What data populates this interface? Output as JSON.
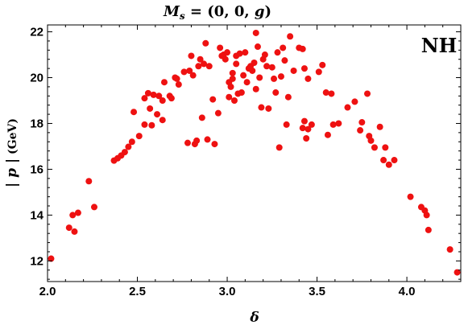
{
  "chart_data": {
    "type": "scatter",
    "title": "M_s = (0, 0, g)",
    "title_parts": {
      "m": "M",
      "sub": "s",
      "rest": " = (0, 0, ",
      "g": "g",
      "close": ")"
    },
    "xlabel": "δ",
    "ylabel": "|p| (GeV)",
    "ylabel_parts": {
      "abs": "| p |",
      "unit": " (GeV)"
    },
    "annotation": "NH",
    "xlim": [
      2.0,
      4.3
    ],
    "ylim": [
      11.1,
      22.3
    ],
    "xticks": [
      2.0,
      2.5,
      3.0,
      3.5,
      4.0
    ],
    "xtick_labels": [
      "2.0",
      "2.5",
      "3.0",
      "3.5",
      "4.0"
    ],
    "yticks": [
      12,
      14,
      16,
      18,
      20,
      22
    ],
    "ytick_labels": [
      "12",
      "14",
      "16",
      "18",
      "20",
      "22"
    ],
    "grid": false,
    "marker_color": "#ee1111",
    "points": [
      [
        2.02,
        12.1
      ],
      [
        2.12,
        13.45
      ],
      [
        2.14,
        14.0
      ],
      [
        2.15,
        13.28
      ],
      [
        2.17,
        14.1
      ],
      [
        2.23,
        15.48
      ],
      [
        2.26,
        14.35
      ],
      [
        2.37,
        16.38
      ],
      [
        2.39,
        16.48
      ],
      [
        2.41,
        16.6
      ],
      [
        2.43,
        16.75
      ],
      [
        2.45,
        16.98
      ],
      [
        2.47,
        17.2
      ],
      [
        2.48,
        18.5
      ],
      [
        2.51,
        17.45
      ],
      [
        2.54,
        17.95
      ],
      [
        2.54,
        19.1
      ],
      [
        2.56,
        19.32
      ],
      [
        2.57,
        18.65
      ],
      [
        2.58,
        17.92
      ],
      [
        2.59,
        19.25
      ],
      [
        2.61,
        18.4
      ],
      [
        2.62,
        19.2
      ],
      [
        2.64,
        18.15
      ],
      [
        2.64,
        19.0
      ],
      [
        2.65,
        19.8
      ],
      [
        2.68,
        19.2
      ],
      [
        2.69,
        19.1
      ],
      [
        2.71,
        20.0
      ],
      [
        2.72,
        19.95
      ],
      [
        2.73,
        19.7
      ],
      [
        2.76,
        20.25
      ],
      [
        2.78,
        17.15
      ],
      [
        2.79,
        20.3
      ],
      [
        2.8,
        20.95
      ],
      [
        2.81,
        20.1
      ],
      [
        2.82,
        17.1
      ],
      [
        2.83,
        17.25
      ],
      [
        2.84,
        20.5
      ],
      [
        2.85,
        20.8
      ],
      [
        2.86,
        18.25
      ],
      [
        2.87,
        20.6
      ],
      [
        2.88,
        21.5
      ],
      [
        2.89,
        17.3
      ],
      [
        2.9,
        20.5
      ],
      [
        2.92,
        19.05
      ],
      [
        2.93,
        17.1
      ],
      [
        2.95,
        18.45
      ],
      [
        2.96,
        21.3
      ],
      [
        2.97,
        20.95
      ],
      [
        2.98,
        21.0
      ],
      [
        2.99,
        20.8
      ],
      [
        3.0,
        21.1
      ],
      [
        3.01,
        19.15
      ],
      [
        3.01,
        19.8
      ],
      [
        3.02,
        19.6
      ],
      [
        3.03,
        20.2
      ],
      [
        3.03,
        19.95
      ],
      [
        3.04,
        19.0
      ],
      [
        3.05,
        20.6
      ],
      [
        3.05,
        20.95
      ],
      [
        3.06,
        19.3
      ],
      [
        3.07,
        21.05
      ],
      [
        3.08,
        19.35
      ],
      [
        3.09,
        20.1
      ],
      [
        3.1,
        21.1
      ],
      [
        3.11,
        19.8
      ],
      [
        3.12,
        20.4
      ],
      [
        3.13,
        20.5
      ],
      [
        3.14,
        20.3
      ],
      [
        3.15,
        20.65
      ],
      [
        3.16,
        21.95
      ],
      [
        3.16,
        19.5
      ],
      [
        3.17,
        21.35
      ],
      [
        3.18,
        20.0
      ],
      [
        3.19,
        18.7
      ],
      [
        3.2,
        20.8
      ],
      [
        3.21,
        21.0
      ],
      [
        3.22,
        20.5
      ],
      [
        3.23,
        18.65
      ],
      [
        3.25,
        20.45
      ],
      [
        3.26,
        19.95
      ],
      [
        3.27,
        19.35
      ],
      [
        3.28,
        21.1
      ],
      [
        3.29,
        16.95
      ],
      [
        3.3,
        20.05
      ],
      [
        3.31,
        21.3
      ],
      [
        3.32,
        20.75
      ],
      [
        3.33,
        17.95
      ],
      [
        3.34,
        19.15
      ],
      [
        3.35,
        21.8
      ],
      [
        3.37,
        20.3
      ],
      [
        3.4,
        21.3
      ],
      [
        3.42,
        17.8
      ],
      [
        3.42,
        21.25
      ],
      [
        3.43,
        18.1
      ],
      [
        3.43,
        20.4
      ],
      [
        3.44,
        17.35
      ],
      [
        3.45,
        17.75
      ],
      [
        3.45,
        19.95
      ],
      [
        3.47,
        17.95
      ],
      [
        3.51,
        20.25
      ],
      [
        3.53,
        20.55
      ],
      [
        3.55,
        19.35
      ],
      [
        3.56,
        17.5
      ],
      [
        3.58,
        19.3
      ],
      [
        3.59,
        17.95
      ],
      [
        3.62,
        18.0
      ],
      [
        3.67,
        18.7
      ],
      [
        3.71,
        18.95
      ],
      [
        3.74,
        17.7
      ],
      [
        3.75,
        18.05
      ],
      [
        3.78,
        19.3
      ],
      [
        3.79,
        17.45
      ],
      [
        3.8,
        17.25
      ],
      [
        3.82,
        16.95
      ],
      [
        3.85,
        17.85
      ],
      [
        3.87,
        16.4
      ],
      [
        3.88,
        16.95
      ],
      [
        3.9,
        16.2
      ],
      [
        3.93,
        16.4
      ],
      [
        4.02,
        14.8
      ],
      [
        4.08,
        14.35
      ],
      [
        4.1,
        14.2
      ],
      [
        4.11,
        14.0
      ],
      [
        4.12,
        13.35
      ],
      [
        4.24,
        12.5
      ],
      [
        4.28,
        11.5
      ]
    ]
  }
}
